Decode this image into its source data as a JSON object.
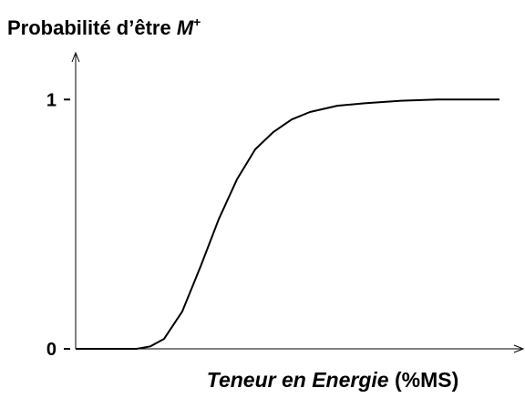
{
  "chart_data": {
    "type": "line",
    "title": [
      "Probabilité d’être ",
      "M",
      "+"
    ],
    "x_label": [
      "Teneur en Energie",
      " (%MS)"
    ],
    "x": [
      0,
      67,
      82,
      97,
      117,
      137,
      157,
      177,
      197,
      217,
      237,
      257,
      287,
      317,
      357,
      397,
      465
    ],
    "series": [
      {
        "color": "#000000",
        "values": [
          0,
          0,
          0.01,
          0.04,
          0.15,
          0.33,
          0.52,
          0.68,
          0.8,
          0.87,
          0.92,
          0.95,
          0.975,
          0.985,
          0.995,
          1,
          1
        ]
      }
    ],
    "xlim": [
      0,
      487
    ],
    "ylim": [
      0,
      1.18
    ],
    "yticks": [
      0,
      1
    ]
  }
}
